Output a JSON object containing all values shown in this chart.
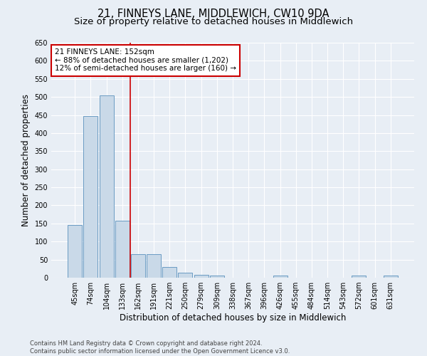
{
  "title": "21, FINNEYS LANE, MIDDLEWICH, CW10 9DA",
  "subtitle": "Size of property relative to detached houses in Middlewich",
  "xlabel": "Distribution of detached houses by size in Middlewich",
  "ylabel": "Number of detached properties",
  "categories": [
    "45sqm",
    "74sqm",
    "104sqm",
    "133sqm",
    "162sqm",
    "191sqm",
    "221sqm",
    "250sqm",
    "279sqm",
    "309sqm",
    "338sqm",
    "367sqm",
    "396sqm",
    "426sqm",
    "455sqm",
    "484sqm",
    "514sqm",
    "543sqm",
    "572sqm",
    "601sqm",
    "631sqm"
  ],
  "values": [
    145,
    448,
    505,
    157,
    65,
    65,
    30,
    13,
    8,
    5,
    0,
    0,
    0,
    5,
    0,
    0,
    0,
    0,
    5,
    0,
    5
  ],
  "bar_color": "#c9d9e8",
  "bar_edge_color": "#6a9bc3",
  "reference_line_color": "#cc0000",
  "annotation_text": "21 FINNEYS LANE: 152sqm\n← 88% of detached houses are smaller (1,202)\n12% of semi-detached houses are larger (160) →",
  "annotation_box_color": "white",
  "annotation_box_edge_color": "#cc0000",
  "ylim": [
    0,
    650
  ],
  "yticks": [
    0,
    50,
    100,
    150,
    200,
    250,
    300,
    350,
    400,
    450,
    500,
    550,
    600,
    650
  ],
  "footer_text": "Contains HM Land Registry data © Crown copyright and database right 2024.\nContains public sector information licensed under the Open Government Licence v3.0.",
  "bg_color": "#e8eef5",
  "grid_color": "white",
  "title_fontsize": 10.5,
  "subtitle_fontsize": 9.5,
  "tick_fontsize": 7,
  "ylabel_fontsize": 8.5,
  "xlabel_fontsize": 8.5,
  "annotation_fontsize": 7.5,
  "footer_fontsize": 6
}
